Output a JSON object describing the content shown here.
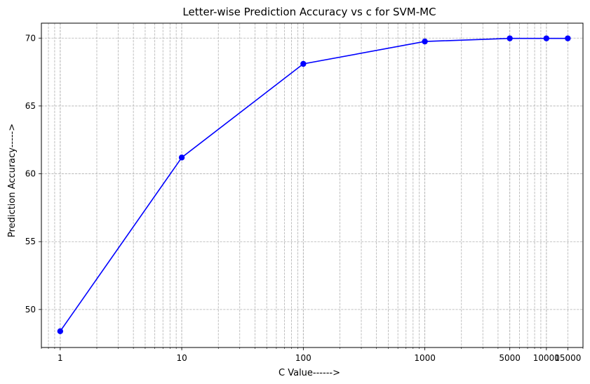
{
  "chart_data": {
    "type": "line",
    "title": "Letter-wise Prediction Accuracy vs c for SVM-MC",
    "xlabel": "C Value------>",
    "ylabel": "Prediction Accuracy----->",
    "x_scale": "log",
    "xlim": [
      0.7,
      20000
    ],
    "ylim": [
      47.2,
      71.1
    ],
    "grid": true,
    "grid_style": "dashed",
    "series_color": "#0000ff",
    "x_ticks": [
      1,
      10,
      100,
      1000,
      5000,
      10000,
      15000
    ],
    "x_tick_labels": [
      "1",
      "10",
      "100",
      "1000",
      "5000",
      "10000",
      "15000"
    ],
    "y_ticks": [
      50,
      55,
      60,
      65,
      70
    ],
    "y_tick_labels": [
      "50",
      "55",
      "60",
      "65",
      "70"
    ],
    "series": [
      {
        "x": [
          1,
          10,
          100,
          1000,
          5000,
          10000,
          15000
        ],
        "y": [
          48.4,
          61.2,
          68.1,
          69.75,
          69.98,
          69.98,
          69.98
        ]
      }
    ]
  }
}
